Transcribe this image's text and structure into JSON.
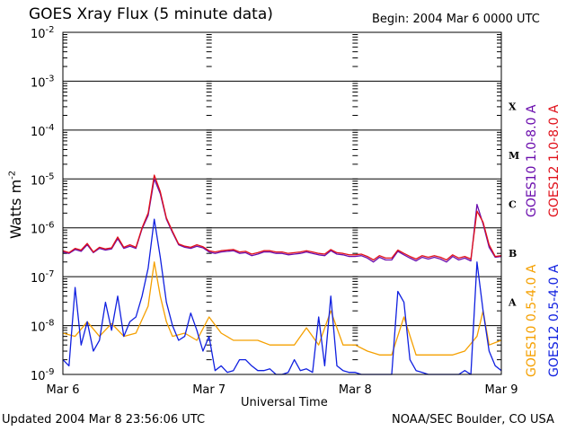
{
  "header": {
    "title": "GOES Xray Flux (5 minute data)",
    "begin": "Begin:  2004 Mar 6 0000 UTC"
  },
  "footer": {
    "updated": "Updated 2004 Mar  8 23:56:06 UTC",
    "credit": "NOAA/SEC Boulder, CO USA"
  },
  "colors": {
    "goes10_long": "#6a0dad",
    "goes12_long": "#e0101a",
    "goes10_short": "#f5a000",
    "goes12_short": "#1020e0"
  },
  "chart_data": {
    "type": "line",
    "title": "GOES Xray Flux (5 minute data)",
    "xlabel": "Universal Time",
    "ylabel": "Watts m-2",
    "yscale": "log",
    "ylim": [
      1e-09,
      0.01
    ],
    "ytick_labels": [
      "10-9",
      "10-8",
      "10-7",
      "10-6",
      "10-5",
      "10-4",
      "10-3",
      "10-2"
    ],
    "xlim": [
      "2004-03-06T00:00",
      "2004-03-09T00:00"
    ],
    "xtick_labels": [
      "Mar 6",
      "Mar 7",
      "Mar 8",
      "Mar 9"
    ],
    "flare_classes": [
      "A",
      "B",
      "C",
      "M",
      "X"
    ],
    "grid": "horizontal at each decade",
    "series": [
      {
        "name": "GOES10 1.0-8.0 A",
        "x_hours": [
          0,
          1,
          2,
          3,
          4,
          5,
          6,
          7,
          8,
          9,
          10,
          11,
          12,
          13,
          14,
          15,
          16,
          17,
          18,
          19,
          20,
          21,
          22,
          23,
          24,
          25,
          26,
          27,
          28,
          29,
          30,
          31,
          32,
          33,
          34,
          35,
          36,
          37,
          38,
          39,
          40,
          41,
          42,
          43,
          44,
          45,
          46,
          47,
          48,
          49,
          50,
          51,
          52,
          53,
          54,
          55,
          56,
          57,
          58,
          59,
          60,
          61,
          62,
          63,
          64,
          65,
          66,
          67,
          68,
          69,
          70,
          71,
          72
        ],
        "values": [
          3.2e-07,
          3e-07,
          3.6e-07,
          3.3e-07,
          4.5e-07,
          3.1e-07,
          3.8e-07,
          3.5e-07,
          3.7e-07,
          6e-07,
          3.8e-07,
          4.2e-07,
          3.8e-07,
          9.5e-07,
          1.8e-06,
          1e-05,
          5e-06,
          1.5e-06,
          8e-07,
          4.5e-07,
          4e-07,
          3.8e-07,
          4.2e-07,
          3.9e-07,
          3.2e-07,
          3e-07,
          3.2e-07,
          3.3e-07,
          3.4e-07,
          3e-07,
          3.1e-07,
          2.7e-07,
          2.9e-07,
          3.2e-07,
          3.2e-07,
          3e-07,
          3e-07,
          2.8e-07,
          2.9e-07,
          3e-07,
          3.2e-07,
          3e-07,
          2.8e-07,
          2.7e-07,
          3.4e-07,
          2.9e-07,
          2.8e-07,
          2.6e-07,
          2.6e-07,
          2.7e-07,
          2.4e-07,
          2e-07,
          2.5e-07,
          2.2e-07,
          2.2e-07,
          3.3e-07,
          2.8e-07,
          2.4e-07,
          2.1e-07,
          2.5e-07,
          2.3e-07,
          2.5e-07,
          2.3e-07,
          2e-07,
          2.6e-07,
          2.2e-07,
          2.4e-07,
          2.1e-07,
          3e-06,
          1.2e-06,
          4e-07,
          2.5e-07,
          2.6e-07
        ]
      },
      {
        "name": "GOES12 1.0-8.0 A",
        "x_hours": [
          0,
          1,
          2,
          3,
          4,
          5,
          6,
          7,
          8,
          9,
          10,
          11,
          12,
          13,
          14,
          15,
          16,
          17,
          18,
          19,
          20,
          21,
          22,
          23,
          24,
          25,
          26,
          27,
          28,
          29,
          30,
          31,
          32,
          33,
          34,
          35,
          36,
          37,
          38,
          39,
          40,
          41,
          42,
          43,
          44,
          45,
          46,
          47,
          48,
          49,
          50,
          51,
          52,
          53,
          54,
          55,
          56,
          57,
          58,
          59,
          60,
          61,
          62,
          63,
          64,
          65,
          66,
          67,
          68,
          69,
          70,
          71,
          72
        ],
        "values": [
          3.4e-07,
          3.1e-07,
          3.8e-07,
          3.5e-07,
          4.8e-07,
          3.2e-07,
          4e-07,
          3.7e-07,
          3.9e-07,
          6.5e-07,
          4e-07,
          4.5e-07,
          4e-07,
          1e-06,
          2e-06,
          1.2e-05,
          5.5e-06,
          1.6e-06,
          8.5e-07,
          4.7e-07,
          4.2e-07,
          4e-07,
          4.5e-07,
          4.1e-07,
          3.4e-07,
          3.2e-07,
          3.4e-07,
          3.5e-07,
          3.6e-07,
          3.2e-07,
          3.3e-07,
          2.9e-07,
          3.1e-07,
          3.4e-07,
          3.4e-07,
          3.2e-07,
          3.2e-07,
          3e-07,
          3.1e-07,
          3.2e-07,
          3.4e-07,
          3.2e-07,
          3e-07,
          2.9e-07,
          3.6e-07,
          3.1e-07,
          3e-07,
          2.8e-07,
          2.8e-07,
          2.9e-07,
          2.6e-07,
          2.2e-07,
          2.7e-07,
          2.4e-07,
          2.4e-07,
          3.5e-07,
          3e-07,
          2.6e-07,
          2.3e-07,
          2.7e-07,
          2.5e-07,
          2.7e-07,
          2.5e-07,
          2.2e-07,
          2.8e-07,
          2.4e-07,
          2.6e-07,
          2.3e-07,
          2.2e-06,
          1.3e-06,
          4.5e-07,
          2.6e-07,
          2.7e-07
        ]
      },
      {
        "name": "GOES10 0.5-4.0 A",
        "x_hours": [
          0,
          2,
          4,
          6,
          8,
          10,
          12,
          14,
          15,
          16,
          17,
          18,
          20,
          22,
          24,
          26,
          28,
          30,
          32,
          34,
          36,
          38,
          40,
          42,
          44,
          46,
          48,
          50,
          52,
          54,
          56,
          58,
          60,
          62,
          64,
          66,
          68,
          69,
          70,
          72
        ],
        "values": [
          7e-09,
          6e-09,
          1.2e-08,
          6e-09,
          1.1e-08,
          6e-09,
          7e-09,
          2.5e-08,
          2e-07,
          4e-08,
          1.2e-08,
          6e-09,
          7e-09,
          5e-09,
          1.5e-08,
          7e-09,
          5e-09,
          5e-09,
          5e-09,
          4e-09,
          4e-09,
          4e-09,
          9e-09,
          4e-09,
          2e-08,
          4e-09,
          4e-09,
          3e-09,
          2.5e-09,
          2.5e-09,
          1.5e-08,
          2.5e-09,
          2.5e-09,
          2.5e-09,
          2.5e-09,
          3e-09,
          6e-09,
          2e-08,
          4e-09,
          5e-09
        ]
      },
      {
        "name": "GOES12 0.5-4.0 A",
        "x_hours": [
          0,
          1,
          2,
          3,
          4,
          5,
          6,
          7,
          8,
          9,
          10,
          11,
          12,
          13,
          14,
          15,
          16,
          17,
          18,
          19,
          20,
          21,
          22,
          23,
          24,
          25,
          26,
          27,
          28,
          29,
          30,
          31,
          32,
          33,
          34,
          35,
          36,
          37,
          38,
          39,
          40,
          41,
          42,
          43,
          44,
          45,
          46,
          47,
          48,
          49,
          50,
          51,
          52,
          53,
          54,
          55,
          56,
          57,
          58,
          59,
          60,
          61,
          62,
          63,
          64,
          65,
          66,
          67,
          68,
          69,
          70,
          71,
          72
        ],
        "values": [
          2e-09,
          1.5e-09,
          6e-08,
          4e-09,
          1.2e-08,
          3e-09,
          5e-09,
          3e-08,
          8e-09,
          4e-08,
          6e-09,
          1.2e-08,
          1.5e-08,
          4e-08,
          1.5e-07,
          1.5e-06,
          2.5e-07,
          3e-08,
          1e-08,
          5e-09,
          6e-09,
          1.8e-08,
          8e-09,
          3e-09,
          6e-09,
          1.2e-09,
          1.5e-09,
          1.1e-09,
          1.2e-09,
          2e-09,
          2e-09,
          1.5e-09,
          1.2e-09,
          1.2e-09,
          1.3e-09,
          1e-09,
          1e-09,
          1.1e-09,
          2e-09,
          1.2e-09,
          1.3e-09,
          1.1e-09,
          1.5e-08,
          1.5e-09,
          4e-08,
          1.5e-09,
          1.2e-09,
          1.1e-09,
          1.1e-09,
          1e-09,
          1e-09,
          1e-09,
          1e-09,
          1e-09,
          1e-09,
          5e-08,
          3e-08,
          2e-09,
          1.2e-09,
          1.1e-09,
          1e-09,
          1e-09,
          1e-09,
          1e-09,
          1e-09,
          1e-09,
          1.2e-09,
          1e-09,
          2e-07,
          2e-08,
          3e-09,
          1.5e-09,
          1.2e-09
        ]
      }
    ]
  }
}
